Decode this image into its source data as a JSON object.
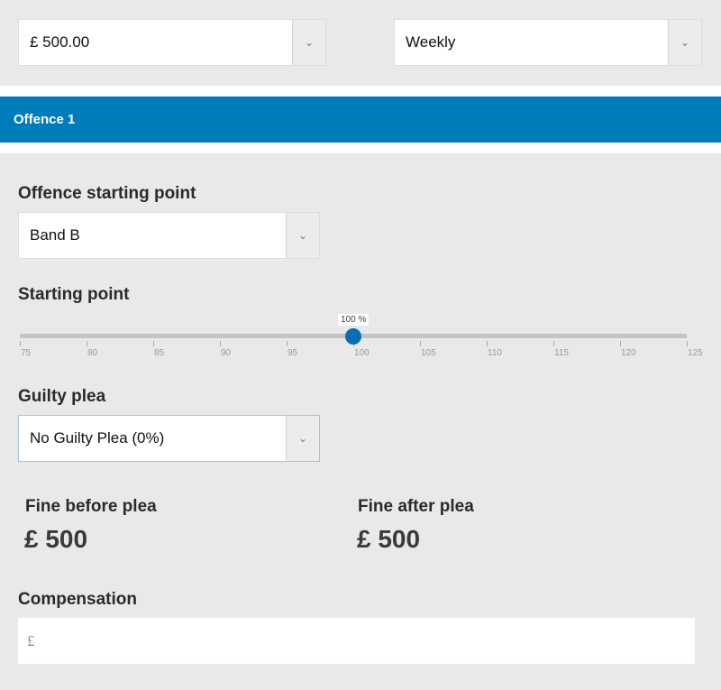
{
  "income": {
    "amount": "£ 500.00",
    "frequency": "Weekly"
  },
  "offence": {
    "title": "Offence 1",
    "starting_point_label": "Offence starting point",
    "starting_point_value": "Band B",
    "slider": {
      "label": "Starting point",
      "min": 75,
      "max": 125,
      "step_labels": [
        "75",
        "80",
        "85",
        "90",
        "95",
        "100",
        "105",
        "110",
        "115",
        "120",
        "125"
      ],
      "value": 100,
      "value_label": "100 %",
      "accent": "#0a6eb4"
    },
    "guilty_plea_label": "Guilty plea",
    "guilty_plea_value": "No Guilty Plea (0%)",
    "fine_before_label": "Fine before plea",
    "fine_before_value": "£ 500",
    "fine_after_label": "Fine after plea",
    "fine_after_value": "£ 500",
    "compensation_label": "Compensation",
    "compensation_placeholder": "£"
  },
  "icons": {
    "dropdown": "chevron-down-icon"
  },
  "colors": {
    "banner": "#007cba"
  }
}
